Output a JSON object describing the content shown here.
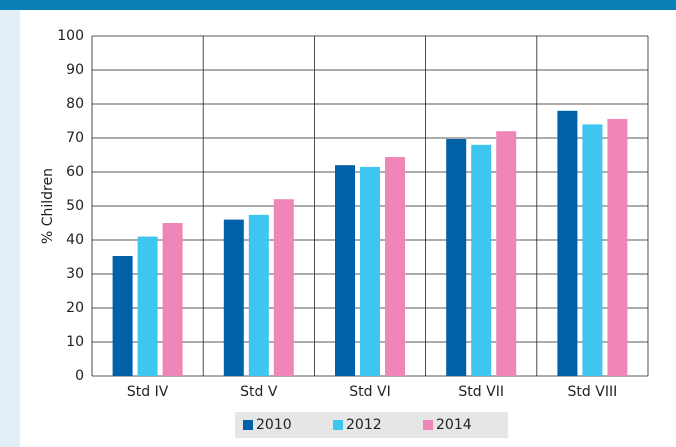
{
  "chart_data": {
    "type": "bar",
    "y_label": "% Children",
    "categories": [
      "Std IV",
      "Std V",
      "Std VI",
      "Std VII",
      "Std VIII"
    ],
    "series": [
      {
        "name": "2010",
        "color": "#0060a8",
        "values": [
          35.3,
          46,
          62,
          69.7,
          78
        ]
      },
      {
        "name": "2012",
        "color": "#3ec6f0",
        "values": [
          41,
          47.4,
          61.5,
          68,
          74
        ]
      },
      {
        "name": "2014",
        "color": "#f086b8",
        "values": [
          45,
          52,
          64.4,
          72,
          75.6
        ]
      }
    ],
    "ylim": [
      0,
      100
    ],
    "yticks": [
      0,
      10,
      20,
      30,
      40,
      50,
      60,
      70,
      80,
      90,
      100
    ],
    "grid": true
  }
}
